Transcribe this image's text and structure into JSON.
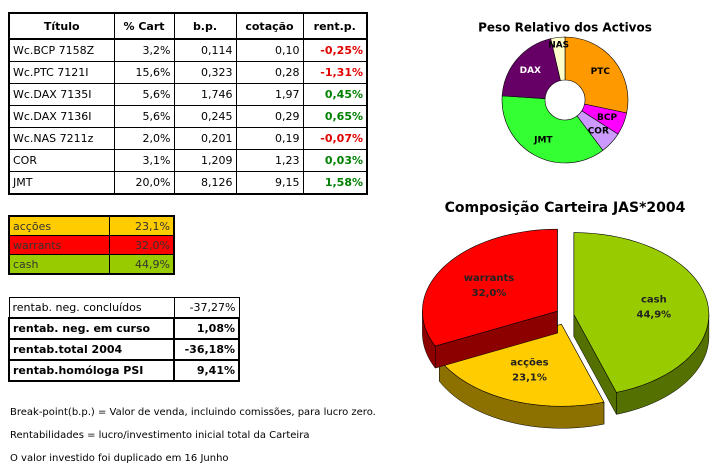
{
  "table": {
    "columns": [
      "Título",
      "% Cart",
      "b.p.",
      "cotação",
      "rent.p."
    ],
    "rows": [
      [
        "Wc.BCP 7158Z",
        "3,2%",
        "0,114",
        "0,10",
        "-0,25%"
      ],
      [
        "Wc.PTC 7121I",
        "15,6%",
        "0,323",
        "0,28",
        "-1,31%"
      ],
      [
        "Wc.DAX 7135I",
        "5,6%",
        "1,746",
        "1,97",
        "0,45%"
      ],
      [
        "Wc.DAX 7136I",
        "5,6%",
        "0,245",
        "0,29",
        "0,65%"
      ],
      [
        "Wc.NAS 7211z",
        "2,0%",
        "0,201",
        "0,19",
        "-0,07%"
      ],
      [
        "COR",
        "3,1%",
        "1,209",
        "1,23",
        "0,03%"
      ],
      [
        "JMT",
        "20,0%",
        "8,126",
        "9,15",
        "1,58%"
      ]
    ]
  },
  "allocation": {
    "rows": [
      {
        "label": "acções",
        "value": "23,1%",
        "color": "#ffcc00"
      },
      {
        "label": "warrants",
        "value": "32,0%",
        "color": "#ff0000"
      },
      {
        "label": "cash",
        "value": "44,9%",
        "color": "#99cc00"
      }
    ]
  },
  "summary": {
    "rows": [
      [
        "rentab. neg. concluídos",
        "-37,27%"
      ],
      [
        "rentab. neg. em curso",
        "1,08%"
      ],
      [
        "rentab.total 2004",
        "-36,18%"
      ],
      [
        "rentab.homóloga PSI",
        "9,41%"
      ]
    ]
  },
  "notes": [
    "Break-point(b.p.) = Valor de venda, incluindo comissões, para lucro zero.",
    "Rentabilidades = lucro/investimento inicial total da Carteira",
    "O valor investido foi duplicado em 16 Junho"
  ],
  "chart_data": [
    {
      "type": "pie",
      "title": "Peso Relativo dos Activos",
      "donut": true,
      "categories": [
        "PTC",
        "BCP",
        "COR",
        "JMT",
        "DAX",
        "NAS"
      ],
      "values": [
        15.6,
        3.2,
        3.1,
        20.0,
        11.2,
        2.0
      ],
      "colors": [
        "#ff9900",
        "#ff00ff",
        "#cc99ff",
        "#33ff33",
        "#660066",
        "#ffffcc"
      ]
    },
    {
      "type": "pie",
      "title": "Composição Carteira JAS*2004",
      "three_d": true,
      "exploded": true,
      "categories": [
        "cash",
        "acções",
        "warrants"
      ],
      "values": [
        44.9,
        23.1,
        32.0
      ],
      "value_labels": [
        "44,9%",
        "23,1%",
        "32,0%"
      ],
      "colors": [
        "#99cc00",
        "#ffcc00",
        "#ff0000"
      ]
    }
  ]
}
